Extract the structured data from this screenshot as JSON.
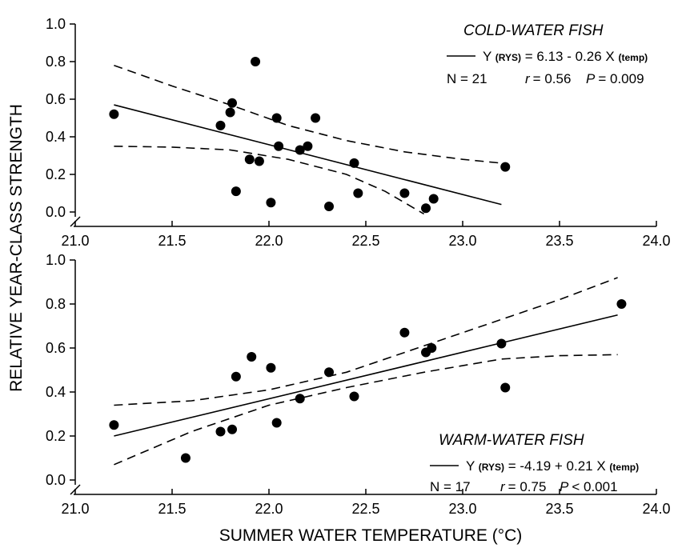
{
  "figure": {
    "ylabel": "RELATIVE YEAR-CLASS STRENGTH",
    "xlabel": "SUMMER WATER TEMPERATURE (°C)"
  },
  "chart_data": [
    {
      "type": "scatter",
      "title": "COLD-WATER FISH",
      "xlim": [
        21.0,
        24.0
      ],
      "ylim": [
        0.0,
        1.0
      ],
      "xticks": [
        "21.0",
        "21.5",
        "22.0",
        "22.5",
        "23.0",
        "23.5",
        "24.0"
      ],
      "yticks": [
        "0.0",
        "0.2",
        "0.4",
        "0.6",
        "0.8",
        "1.0"
      ],
      "grid": false,
      "legend": {
        "placement": "top-right",
        "eq_prefix": "Y",
        "eq_sub1": "(RYS)",
        "eq_mid": "= 6.13 - 0.26 X",
        "eq_sub2": "(temp)",
        "n_text": "N = 21",
        "r_label": "r",
        "r_value": "= 0.56",
        "p_label": "P",
        "p_value": "= 0.009"
      },
      "points": [
        {
          "x": 21.2,
          "y": 0.52
        },
        {
          "x": 21.75,
          "y": 0.46
        },
        {
          "x": 21.8,
          "y": 0.53
        },
        {
          "x": 21.81,
          "y": 0.58
        },
        {
          "x": 21.83,
          "y": 0.11
        },
        {
          "x": 21.9,
          "y": 0.28
        },
        {
          "x": 21.93,
          "y": 0.8
        },
        {
          "x": 21.95,
          "y": 0.27
        },
        {
          "x": 22.01,
          "y": 0.05
        },
        {
          "x": 22.04,
          "y": 0.5
        },
        {
          "x": 22.05,
          "y": 0.35
        },
        {
          "x": 22.16,
          "y": 0.33
        },
        {
          "x": 22.2,
          "y": 0.35
        },
        {
          "x": 22.24,
          "y": 0.5
        },
        {
          "x": 22.31,
          "y": 0.03
        },
        {
          "x": 22.44,
          "y": 0.26
        },
        {
          "x": 22.46,
          "y": 0.1
        },
        {
          "x": 22.7,
          "y": 0.1
        },
        {
          "x": 22.81,
          "y": 0.02
        },
        {
          "x": 22.85,
          "y": 0.07
        },
        {
          "x": 23.22,
          "y": 0.24
        }
      ],
      "regression": {
        "x": [
          21.2,
          23.2
        ],
        "y": [
          0.57,
          0.04
        ]
      },
      "ci_upper": {
        "x": [
          21.2,
          21.5,
          21.8,
          22.1,
          22.4,
          22.7,
          23.0,
          23.2
        ],
        "y": [
          0.78,
          0.67,
          0.57,
          0.46,
          0.38,
          0.32,
          0.28,
          0.26
        ]
      },
      "ci_lower": {
        "x": [
          21.2,
          21.5,
          21.8,
          22.1,
          22.4,
          22.6,
          22.8
        ],
        "y": [
          0.35,
          0.345,
          0.33,
          0.28,
          0.2,
          0.11,
          -0.01
        ]
      }
    },
    {
      "type": "scatter",
      "title": "WARM-WATER FISH",
      "xlim": [
        21.0,
        24.0
      ],
      "ylim": [
        0.0,
        1.0
      ],
      "xticks": [
        "21.0",
        "21.5",
        "22.0",
        "22.5",
        "23.0",
        "23.5",
        "24.0"
      ],
      "yticks": [
        "0.0",
        "0.2",
        "0.4",
        "0.6",
        "0.8",
        "1.0"
      ],
      "grid": false,
      "legend": {
        "placement": "bottom-right",
        "eq_prefix": "Y",
        "eq_sub1": "(RYS)",
        "eq_mid": "= -4.19 + 0.21 X",
        "eq_sub2": "(temp)",
        "n_text": "N = 17",
        "r_label": "r",
        "r_value": "= 0.75",
        "p_label": "P",
        "p_value": "< 0.001"
      },
      "points": [
        {
          "x": 21.2,
          "y": 0.25
        },
        {
          "x": 21.57,
          "y": 0.1
        },
        {
          "x": 21.75,
          "y": 0.22
        },
        {
          "x": 21.81,
          "y": 0.23
        },
        {
          "x": 21.83,
          "y": 0.47
        },
        {
          "x": 21.91,
          "y": 0.56
        },
        {
          "x": 22.01,
          "y": 0.51
        },
        {
          "x": 22.04,
          "y": 0.26
        },
        {
          "x": 22.16,
          "y": 0.37
        },
        {
          "x": 22.31,
          "y": 0.49
        },
        {
          "x": 22.44,
          "y": 0.38
        },
        {
          "x": 22.7,
          "y": 0.67
        },
        {
          "x": 22.81,
          "y": 0.58
        },
        {
          "x": 22.84,
          "y": 0.6
        },
        {
          "x": 23.2,
          "y": 0.62
        },
        {
          "x": 23.22,
          "y": 0.42
        },
        {
          "x": 23.82,
          "y": 0.8
        }
      ],
      "regression": {
        "x": [
          21.2,
          23.8
        ],
        "y": [
          0.2,
          0.75
        ]
      },
      "ci_upper": {
        "x": [
          21.2,
          21.6,
          22.0,
          22.4,
          22.8,
          23.2,
          23.5,
          23.8
        ],
        "y": [
          0.34,
          0.36,
          0.41,
          0.49,
          0.61,
          0.73,
          0.82,
          0.92
        ]
      },
      "ci_lower": {
        "x": [
          21.2,
          21.6,
          22.0,
          22.4,
          22.8,
          23.2,
          23.5,
          23.8
        ],
        "y": [
          0.07,
          0.22,
          0.34,
          0.42,
          0.49,
          0.55,
          0.565,
          0.57
        ]
      }
    }
  ]
}
